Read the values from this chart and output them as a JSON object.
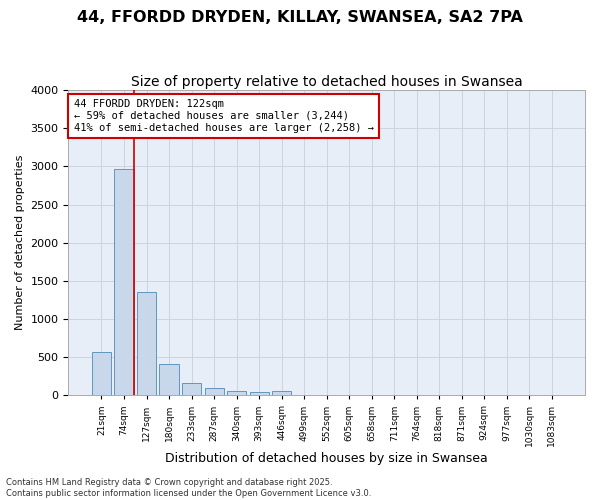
{
  "title1": "44, FFORDD DRYDEN, KILLAY, SWANSEA, SA2 7PA",
  "title2": "Size of property relative to detached houses in Swansea",
  "xlabel": "Distribution of detached houses by size in Swansea",
  "ylabel": "Number of detached properties",
  "bin_labels": [
    "21sqm",
    "74sqm",
    "127sqm",
    "180sqm",
    "233sqm",
    "287sqm",
    "340sqm",
    "393sqm",
    "446sqm",
    "499sqm",
    "552sqm",
    "605sqm",
    "658sqm",
    "711sqm",
    "764sqm",
    "818sqm",
    "871sqm",
    "924sqm",
    "977sqm",
    "1030sqm",
    "1083sqm"
  ],
  "bar_values": [
    570,
    2970,
    1360,
    415,
    165,
    95,
    55,
    45,
    55,
    0,
    0,
    0,
    0,
    0,
    0,
    0,
    0,
    0,
    0,
    0,
    0
  ],
  "bar_color": "#c8d8ea",
  "bar_edge_color": "#6096c0",
  "grid_color": "#c8d0dc",
  "background_color": "#e8eef8",
  "vline_color": "#cc0000",
  "vline_pos": 1.45,
  "annotation_line1": "44 FFORDD DRYDEN: 122sqm",
  "annotation_line2": "← 59% of detached houses are smaller (3,244)",
  "annotation_line3": "41% of semi-detached houses are larger (2,258) →",
  "annotation_box_color": "#cc0000",
  "ylim": [
    0,
    4000
  ],
  "yticks": [
    0,
    500,
    1000,
    1500,
    2000,
    2500,
    3000,
    3500,
    4000
  ],
  "footer": "Contains HM Land Registry data © Crown copyright and database right 2025.\nContains public sector information licensed under the Open Government Licence v3.0.",
  "title1_fontsize": 11.5,
  "title2_fontsize": 10
}
